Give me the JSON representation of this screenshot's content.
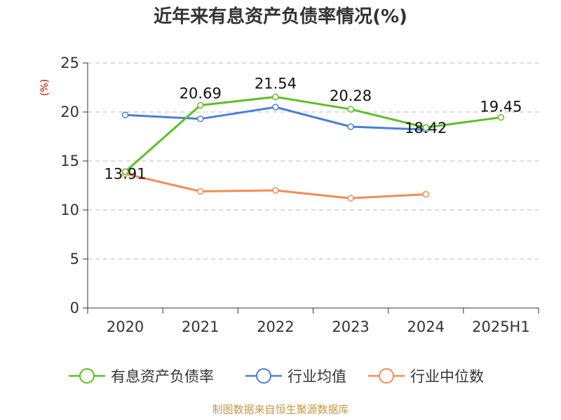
{
  "chart_data": {
    "type": "line",
    "title": "近年来有息资产负债率情况(%)",
    "ylabel": "(%)",
    "categories": [
      "2020",
      "2021",
      "2022",
      "2023",
      "2024",
      "2025H1"
    ],
    "ylim": [
      0,
      25
    ],
    "yticks": [
      0,
      5,
      10,
      15,
      20,
      25
    ],
    "grid": true,
    "legend_position": "bottom",
    "series": [
      {
        "name": "有息资产负债率",
        "color": "#5cbf24",
        "values": [
          13.91,
          20.69,
          21.54,
          20.28,
          18.42,
          19.45
        ],
        "labels": [
          "13.91",
          "20.69",
          "21.54",
          "20.28",
          "18.42",
          "19.45"
        ]
      },
      {
        "name": "行业均值",
        "color": "#4a7fd6",
        "values": [
          19.7,
          19.3,
          20.5,
          18.5,
          18.2,
          null
        ]
      },
      {
        "name": "行业中位数",
        "color": "#f28c54",
        "values": [
          13.7,
          11.9,
          12.0,
          11.2,
          11.6,
          null
        ]
      }
    ]
  },
  "source": "制图数据来自恒生聚源数据库"
}
